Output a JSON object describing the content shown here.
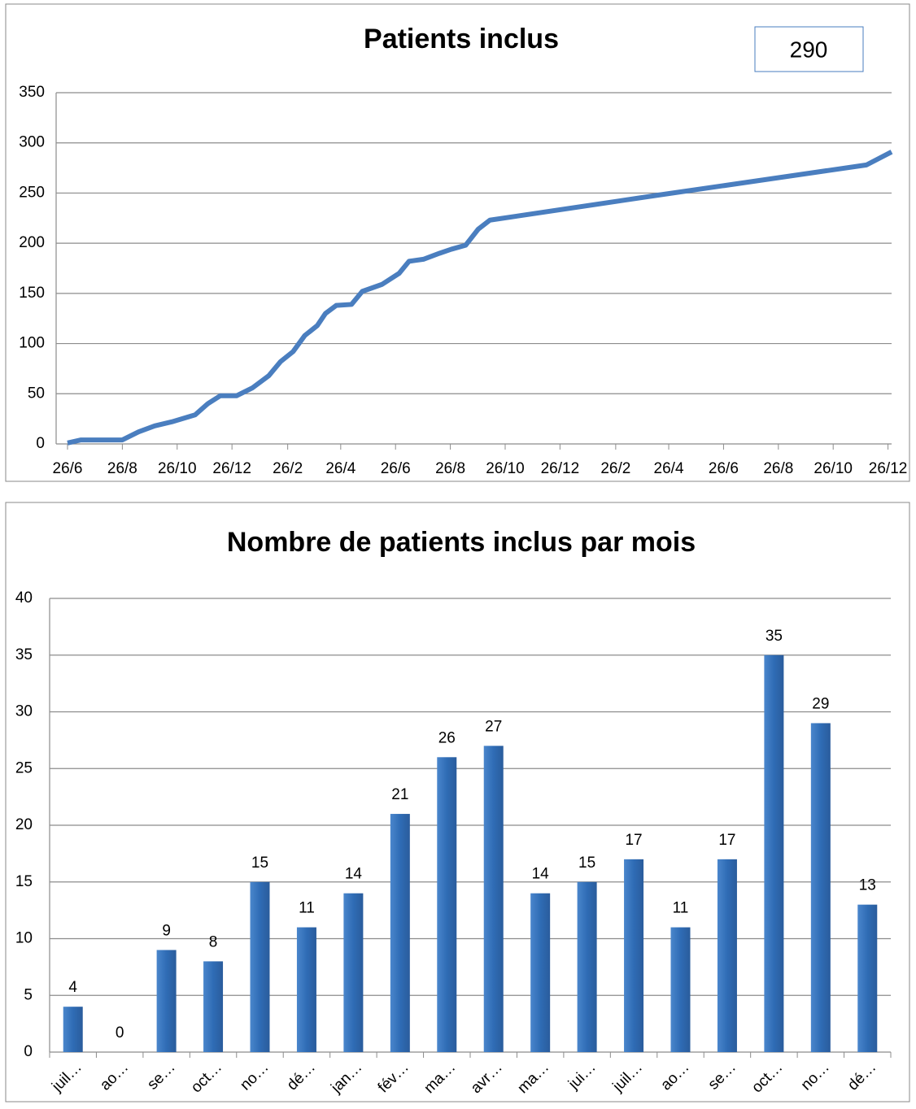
{
  "chart_data": [
    {
      "type": "line",
      "title": "Patients inclus",
      "annotation": "290",
      "x": [
        0,
        15,
        61,
        79,
        97,
        116,
        142,
        156,
        170,
        188,
        206,
        224,
        237,
        251,
        264,
        278,
        287,
        299,
        316,
        328,
        350,
        369,
        380,
        396,
        414,
        427,
        443,
        457,
        470,
        658,
        889,
        917
      ],
      "series": [
        {
          "name": "Patients inclus",
          "color": "#4a7ebf",
          "values": [
            1,
            4,
            4,
            12,
            18,
            22,
            29,
            40,
            48,
            48,
            56,
            68,
            82,
            92,
            108,
            118,
            130,
            138,
            139,
            152,
            159,
            170,
            182,
            184,
            190,
            194,
            198,
            214,
            223,
            248,
            278,
            291
          ]
        }
      ],
      "xlim": [
        0,
        917
      ],
      "xticks": [
        {
          "value": 0,
          "label": "26/6"
        },
        {
          "value": 61,
          "label": "26/8"
        },
        {
          "value": 122,
          "label": "26/10"
        },
        {
          "value": 183,
          "label": "26/12"
        },
        {
          "value": 245,
          "label": "26/2"
        },
        {
          "value": 304,
          "label": "26/4"
        },
        {
          "value": 365,
          "label": "26/6"
        },
        {
          "value": 426,
          "label": "26/8"
        },
        {
          "value": 487,
          "label": "26/10"
        },
        {
          "value": 548,
          "label": "26/12"
        },
        {
          "value": 610,
          "label": "26/2"
        },
        {
          "value": 669,
          "label": "26/4"
        },
        {
          "value": 730,
          "label": "26/6"
        },
        {
          "value": 791,
          "label": "26/8"
        },
        {
          "value": 852,
          "label": "26/10"
        },
        {
          "value": 913,
          "label": "26/12"
        }
      ],
      "ylim": [
        0,
        350
      ],
      "yticks": [
        0,
        50,
        100,
        150,
        200,
        250,
        300,
        350
      ],
      "grid": true
    },
    {
      "type": "bar",
      "title": "Nombre de patients inclus par mois",
      "categories": [
        "juil…",
        "ao…",
        "se…",
        "oct…",
        "no…",
        "dé…",
        "jan…",
        "fév…",
        "ma…",
        "avr…",
        "ma…",
        "jui…",
        "juil…",
        "ao…",
        "se…",
        "oct…",
        "no…",
        "dé…"
      ],
      "values": [
        4,
        0,
        9,
        8,
        15,
        11,
        14,
        21,
        26,
        27,
        14,
        15,
        17,
        11,
        17,
        35,
        29,
        13
      ],
      "color": "#3470b8",
      "ylim": [
        0,
        40
      ],
      "yticks": [
        0,
        5,
        10,
        15,
        20,
        25,
        30,
        35,
        40
      ],
      "grid": true
    }
  ]
}
